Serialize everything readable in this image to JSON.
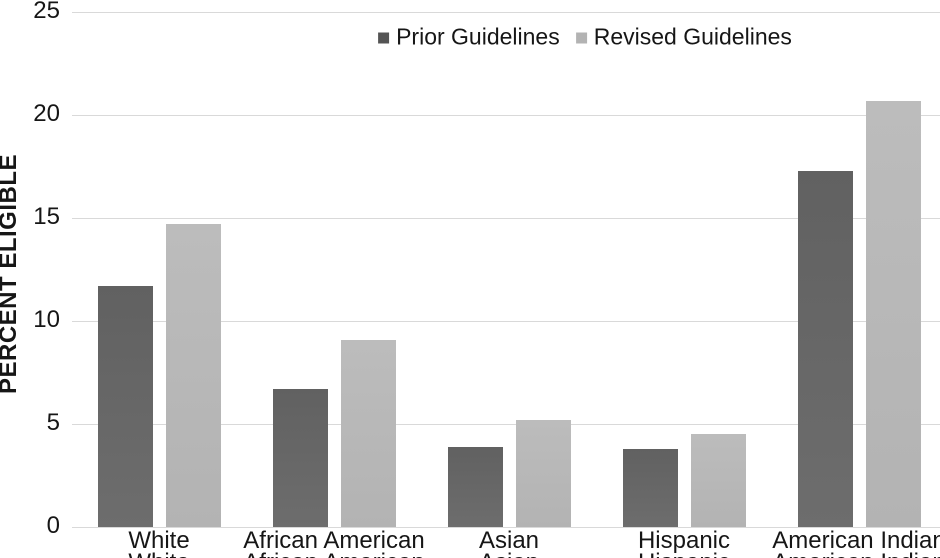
{
  "chart_data": {
    "type": "bar",
    "title": "",
    "ylabel": "PERCENT ELIGIBLE",
    "xlabel": "",
    "ylim": [
      0,
      25
    ],
    "yticks": [
      0,
      5,
      10,
      15,
      20,
      25
    ],
    "grid": true,
    "legend_position": "top-center",
    "categories": [
      "White",
      "African American",
      "Asian",
      "Hispanic",
      "American Indian"
    ],
    "series": [
      {
        "name": "Prior Guidelines",
        "values": [
          11.7,
          6.7,
          3.9,
          3.8,
          17.3
        ],
        "color_top": "#616161",
        "color_bottom": "#6d6d6d",
        "marker_color": "#545454"
      },
      {
        "name": "Revised Guidelines",
        "values": [
          14.7,
          9.1,
          5.2,
          4.5,
          20.7
        ],
        "color_top": "#bcbcbc",
        "color_bottom": "#b3b3b3",
        "marker_color": "#b3b3b3"
      }
    ],
    "colors": {
      "gridline": "#d9d9d9",
      "axis_line": "#d9d9d9",
      "text": "#161616",
      "background": "#ffffff"
    }
  }
}
